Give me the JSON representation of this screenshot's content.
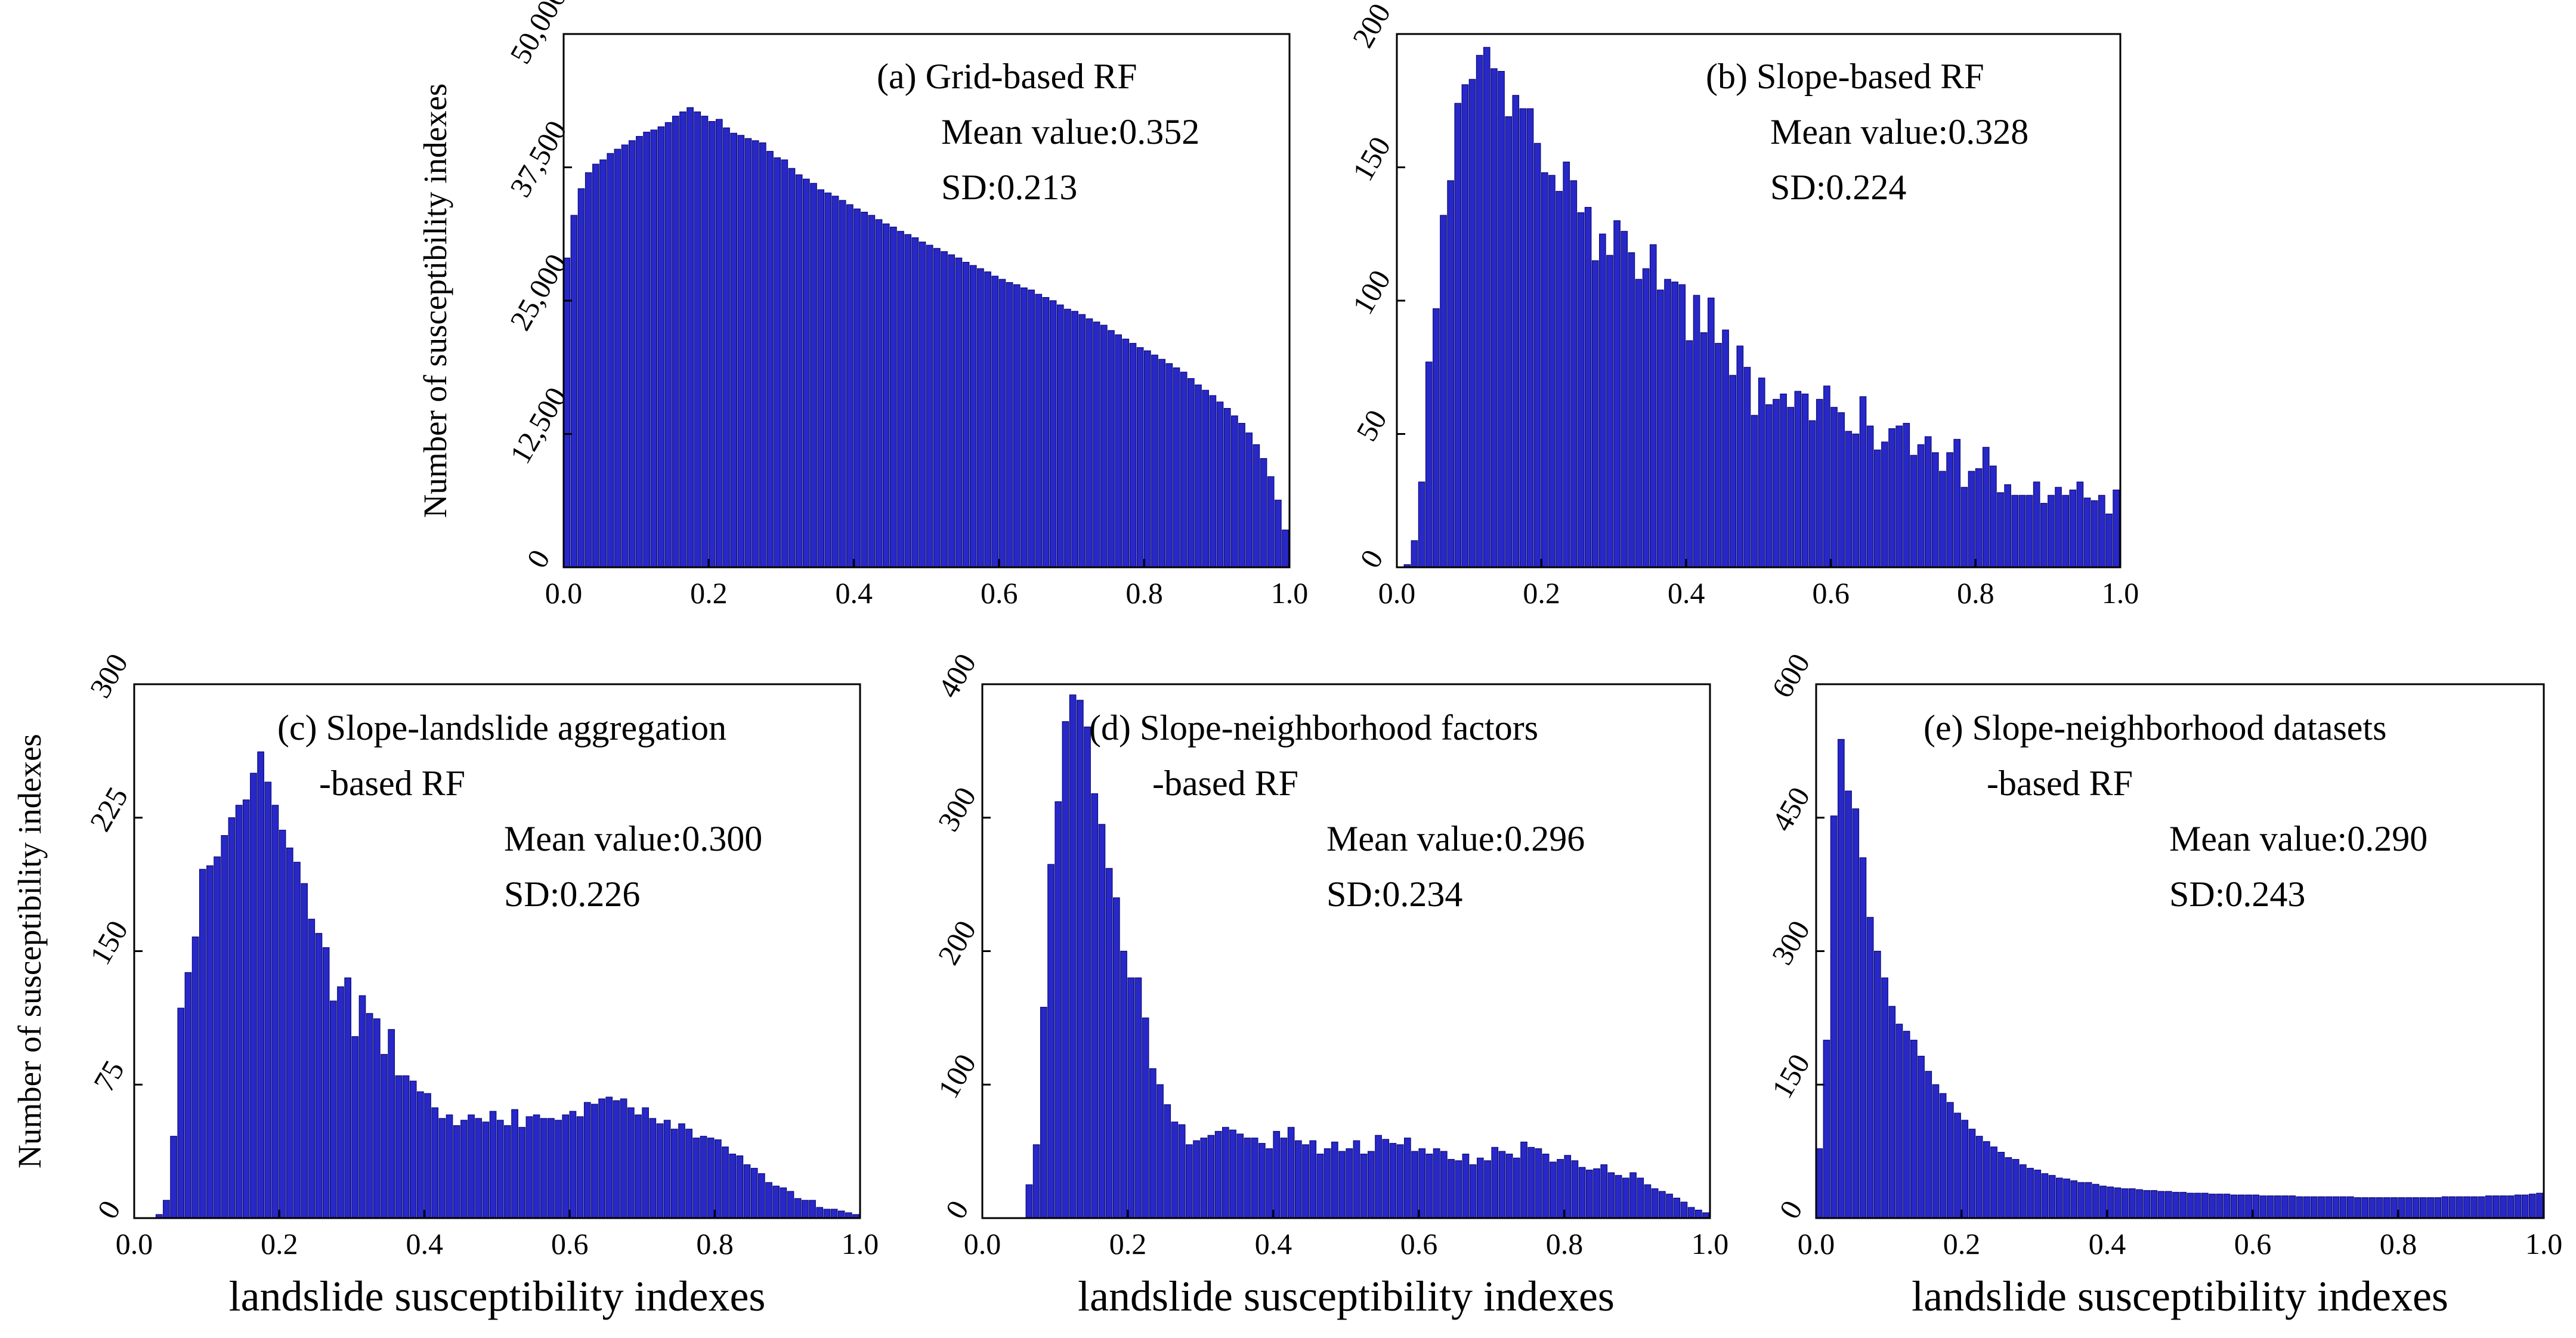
{
  "figure": {
    "ylabel": "Number of susceptibility indexes",
    "xlabel": "landslide susceptibility indexes"
  },
  "style": {
    "bar_color": "#2828C8",
    "bar_edge": "#0a0a78"
  },
  "chart_data": [
    {
      "type": "bar",
      "panel": "a",
      "annotation": [
        "(a) Grid-based RF",
        "Mean value:0.352",
        "SD:0.213"
      ],
      "xlim": [
        0,
        1
      ],
      "ylim": [
        0,
        50000
      ],
      "xticks": [
        "0.0",
        "0.2",
        "0.4",
        "0.6",
        "0.8",
        "1.0"
      ],
      "yticks": [
        "0",
        "12,500",
        "25,000",
        "37,500",
        "50,000"
      ],
      "ylabel": "Number of susceptibility indexes",
      "xlabel": "",
      "bins": 100,
      "values": [
        29000,
        33000,
        35500,
        37000,
        37800,
        38200,
        38800,
        39200,
        39600,
        40000,
        40400,
        40800,
        41000,
        41300,
        41700,
        42300,
        42700,
        43100,
        42700,
        42300,
        41800,
        42000,
        41200,
        40700,
        40500,
        40200,
        40000,
        39800,
        39000,
        38400,
        38200,
        37400,
        36800,
        36400,
        36000,
        35400,
        35100,
        34800,
        34400,
        34000,
        33600,
        33300,
        33000,
        32600,
        32200,
        31900,
        31500,
        31200,
        30900,
        30500,
        30200,
        29900,
        29600,
        29300,
        29000,
        28600,
        28300,
        28000,
        27700,
        27300,
        27000,
        26700,
        26500,
        26200,
        26000,
        25600,
        25300,
        25000,
        24600,
        24200,
        24000,
        23700,
        23300,
        23000,
        22700,
        22200,
        21800,
        21400,
        21000,
        20600,
        20300,
        19900,
        19500,
        19100,
        18700,
        18300,
        17700,
        17100,
        16600,
        16100,
        15500,
        14900,
        14200,
        13500,
        12600,
        11500,
        10200,
        8500,
        6300,
        3500
      ]
    },
    {
      "type": "bar",
      "panel": "b",
      "annotation": [
        "(b) Slope-based RF",
        "Mean value:0.328",
        "SD:0.224"
      ],
      "xlim": [
        0,
        1
      ],
      "ylim": [
        0,
        200
      ],
      "xticks": [
        "0.0",
        "0.2",
        "0.4",
        "0.6",
        "0.8",
        "1.0"
      ],
      "yticks": [
        "0",
        "50",
        "100",
        "150",
        "200"
      ],
      "ylabel": "",
      "xlabel": "",
      "bins": 100,
      "values": [
        0,
        1,
        10,
        32,
        77,
        97,
        132,
        145,
        174,
        181,
        183,
        192,
        195,
        187,
        186,
        169,
        177,
        172,
        172,
        159,
        148,
        147,
        141,
        152,
        145,
        133,
        135,
        115,
        125,
        117,
        130,
        126,
        118,
        108,
        112,
        121,
        104,
        108,
        107,
        106,
        85,
        102,
        88,
        101,
        84,
        89,
        72,
        83,
        75,
        57,
        71,
        61,
        63,
        65,
        60,
        66,
        65,
        55,
        63,
        68,
        60,
        58,
        51,
        50,
        64,
        53,
        44,
        47,
        52,
        53,
        54,
        42,
        46,
        49,
        43,
        36,
        43,
        48,
        30,
        36,
        37,
        45,
        38,
        28,
        31,
        27,
        27,
        27,
        32,
        24,
        27,
        30,
        27,
        29,
        32,
        26,
        25,
        27,
        20,
        29
      ]
    },
    {
      "type": "bar",
      "panel": "c",
      "annotation": [
        "(c) Slope-landslide aggregation",
        "-based RF",
        "Mean value:0.300",
        "SD:0.226"
      ],
      "xlim": [
        0,
        1
      ],
      "ylim": [
        0,
        300
      ],
      "xticks": [
        "0.0",
        "0.2",
        "0.4",
        "0.6",
        "0.8",
        "1.0"
      ],
      "yticks": [
        "0",
        "75",
        "150",
        "225",
        "300"
      ],
      "ylabel": "Number of susceptibility indexes",
      "xlabel": "landslide susceptibility indexes",
      "bins": 100,
      "values": [
        0,
        0,
        0,
        2,
        10,
        46,
        118,
        138,
        158,
        196,
        198,
        203,
        215,
        225,
        232,
        235,
        250,
        262,
        245,
        232,
        218,
        208,
        200,
        188,
        168,
        160,
        152,
        122,
        130,
        135,
        102,
        125,
        115,
        112,
        92,
        106,
        80,
        80,
        77,
        71,
        70,
        62,
        56,
        58,
        52,
        55,
        58,
        56,
        54,
        60,
        55,
        52,
        61,
        51,
        57,
        58,
        56,
        56,
        55,
        58,
        60,
        57,
        65,
        64,
        67,
        68,
        66,
        67,
        62,
        58,
        62,
        56,
        53,
        55,
        50,
        53,
        50,
        45,
        46,
        45,
        44,
        40,
        36,
        35,
        30,
        28,
        25,
        20,
        18,
        17,
        15,
        11,
        10,
        10,
        6,
        5,
        5,
        4,
        3,
        2
      ]
    },
    {
      "type": "bar",
      "panel": "d",
      "annotation": [
        "(d) Slope-neighborhood factors",
        "-based RF",
        "Mean value:0.296",
        "SD:0.234"
      ],
      "xlim": [
        0,
        1
      ],
      "ylim": [
        0,
        400
      ],
      "xticks": [
        "0.0",
        "0.2",
        "0.4",
        "0.6",
        "0.8",
        "1.0"
      ],
      "yticks": [
        "0",
        "100",
        "200",
        "300",
        "400"
      ],
      "ylabel": "",
      "xlabel": "landslide susceptibility indexes",
      "bins": 100,
      "values": [
        0,
        0,
        0,
        0,
        0,
        0,
        25,
        55,
        158,
        265,
        312,
        372,
        392,
        388,
        368,
        318,
        295,
        262,
        240,
        200,
        180,
        180,
        150,
        112,
        100,
        85,
        72,
        70,
        55,
        58,
        60,
        62,
        65,
        68,
        66,
        63,
        60,
        60,
        56,
        52,
        65,
        60,
        68,
        58,
        55,
        58,
        48,
        52,
        57,
        50,
        52,
        58,
        48,
        50,
        62,
        59,
        56,
        55,
        60,
        50,
        52,
        48,
        52,
        50,
        44,
        43,
        48,
        40,
        45,
        43,
        53,
        50,
        48,
        45,
        57,
        53,
        52,
        48,
        42,
        44,
        47,
        43,
        38,
        36,
        37,
        40,
        34,
        32,
        30,
        34,
        30,
        25,
        22,
        20,
        18,
        15,
        12,
        8,
        6,
        4
      ]
    },
    {
      "type": "bar",
      "panel": "e",
      "annotation": [
        "(e) Slope-neighborhood datasets",
        "-based RF",
        "Mean value:0.290",
        "SD:0.243"
      ],
      "xlim": [
        0,
        1
      ],
      "ylim": [
        0,
        600
      ],
      "xticks": [
        "0.0",
        "0.2",
        "0.4",
        "0.6",
        "0.8",
        "1.0"
      ],
      "yticks": [
        "0",
        "150",
        "300",
        "450",
        "600"
      ],
      "ylabel": "",
      "xlabel": "landslide susceptibility indexes",
      "bins": 100,
      "values": [
        78,
        200,
        452,
        538,
        480,
        460,
        405,
        338,
        300,
        270,
        238,
        218,
        210,
        200,
        182,
        165,
        150,
        140,
        130,
        118,
        110,
        100,
        92,
        86,
        80,
        74,
        68,
        66,
        60,
        56,
        54,
        50,
        48,
        45,
        44,
        42,
        40,
        40,
        38,
        36,
        35,
        34,
        33,
        33,
        32,
        31,
        31,
        30,
        30,
        29,
        29,
        28,
        28,
        28,
        27,
        27,
        27,
        26,
        26,
        26,
        26,
        25,
        25,
        25,
        25,
        25,
        24,
        24,
        24,
        24,
        24,
        24,
        24,
        24,
        23,
        23,
        23,
        23,
        23,
        23,
        23,
        23,
        23,
        23,
        23,
        23,
        24,
        24,
        24,
        24,
        24,
        24,
        25,
        25,
        25,
        25,
        26,
        26,
        27,
        28
      ]
    }
  ]
}
